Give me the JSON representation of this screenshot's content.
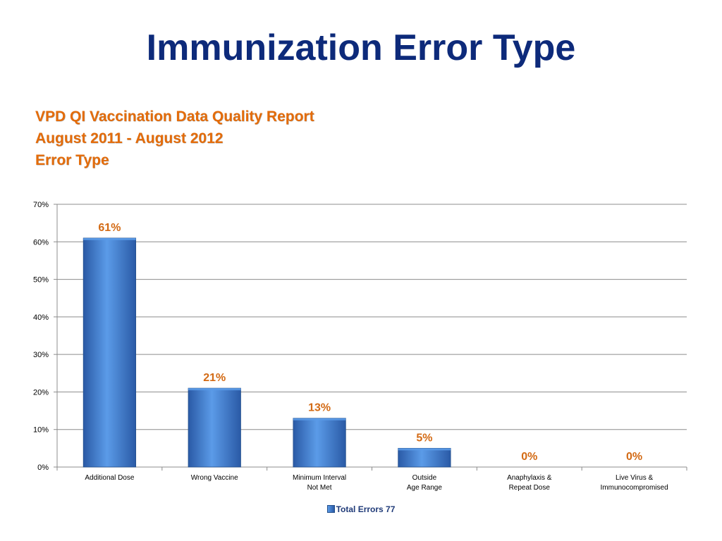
{
  "slide": {
    "title": "Immunization Error Type"
  },
  "report": {
    "line1": "VPD QI Vaccination Data Quality Report",
    "line2": "August 2011 - August 2012",
    "line3": "Error Type"
  },
  "colors": {
    "title": "#0d2a7a",
    "heading": "#e46c0a",
    "bar_light": "#5b9be8",
    "bar_dark": "#2a5aa6",
    "bar_edge": "#244f8a",
    "data_label": "#d36a14",
    "grid": "#8c8c8c"
  },
  "chart_data": {
    "type": "bar",
    "categories": [
      [
        "Additional Dose"
      ],
      [
        "Wrong Vaccine"
      ],
      [
        "Minimum Interval",
        "Not Met"
      ],
      [
        "Outside",
        "Age Range"
      ],
      [
        "Anaphylaxis &",
        "Repeat Dose"
      ],
      [
        "Live Virus &",
        "Immunocompromised"
      ]
    ],
    "series": [
      {
        "name": "Total Errors 77",
        "values": [
          61,
          21,
          13,
          5,
          0,
          0
        ]
      }
    ],
    "data_labels": [
      "61%",
      "21%",
      "13%",
      "5%",
      "0%",
      "0%"
    ],
    "yticks": [
      "0%",
      "10%",
      "20%",
      "30%",
      "40%",
      "50%",
      "60%",
      "70%"
    ],
    "ylim": [
      0,
      70
    ],
    "ytick_step": 10,
    "grid": true,
    "legend_position": "bottom"
  }
}
